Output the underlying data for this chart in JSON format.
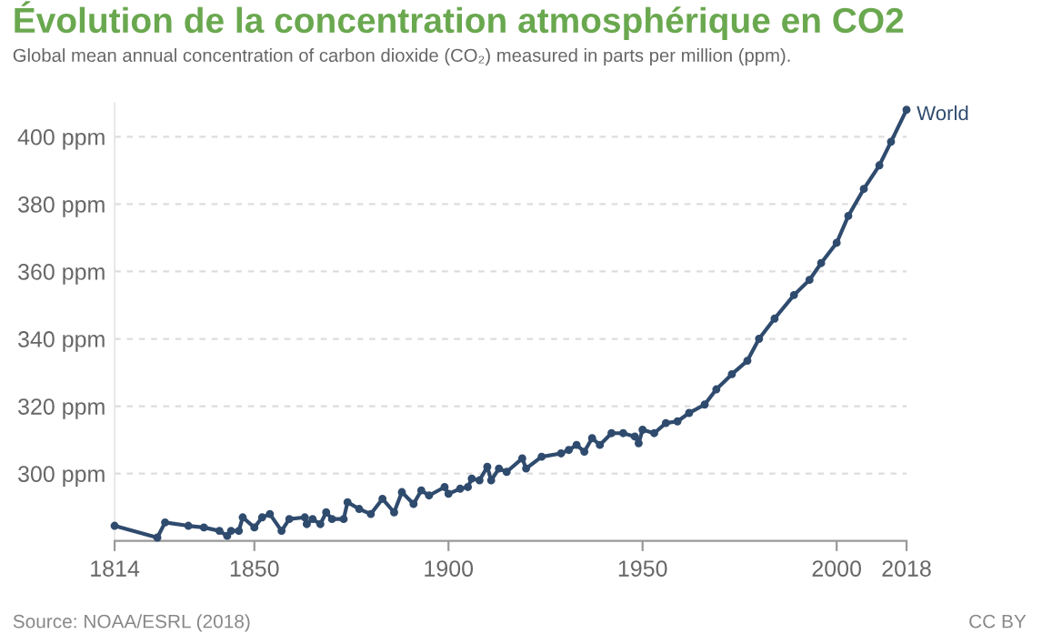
{
  "chart_data": {
    "type": "line",
    "title": "Évolution de la concentration atmosphérique en CO2",
    "subtitle": "Global mean annual concentration of carbon dioxide (CO₂) measured in parts per million (ppm).",
    "annotations": [
      "Source: NOAA/ESRL (2018)",
      "CC BY"
    ],
    "series": [
      {
        "name": "World",
        "color": "#2f4b6e",
        "x": [
          1814,
          1825,
          1827,
          1833,
          1837,
          1841,
          1843,
          1844,
          1846,
          1847,
          1850,
          1852,
          1854,
          1857,
          1859,
          1863,
          1863.5,
          1865,
          1867,
          1868.5,
          1870,
          1873,
          1874,
          1877,
          1880,
          1883,
          1886,
          1888,
          1891,
          1893,
          1895,
          1899,
          1900,
          1903,
          1905,
          1906,
          1908,
          1910,
          1911,
          1913,
          1915,
          1919,
          1920,
          1924,
          1929,
          1931,
          1933,
          1935,
          1937,
          1939,
          1942,
          1945,
          1948,
          1949,
          1950,
          1953,
          1956,
          1959,
          1962,
          1966,
          1969,
          1973,
          1977,
          1980,
          1984,
          1989,
          1993,
          1996,
          2000,
          2003,
          2007,
          2011,
          2014,
          2018
        ],
        "values": [
          284.5,
          281.0,
          285.5,
          284.5,
          284.0,
          283.0,
          281.5,
          283.0,
          283.0,
          287.0,
          284.0,
          287.0,
          288.0,
          283.0,
          286.5,
          287.0,
          285.0,
          286.5,
          285.0,
          288.5,
          286.5,
          286.5,
          291.5,
          289.5,
          288.0,
          292.5,
          288.5,
          294.5,
          291.0,
          295.0,
          293.5,
          296.0,
          294.0,
          295.5,
          296.0,
          298.5,
          298.0,
          302.0,
          298.0,
          301.5,
          300.5,
          304.5,
          301.5,
          305.0,
          306.0,
          307.0,
          308.5,
          306.5,
          310.5,
          308.5,
          312.0,
          312.0,
          311.0,
          309.0,
          313.0,
          312.0,
          315.0,
          315.5,
          318.0,
          320.5,
          325.0,
          329.5,
          333.5,
          340.0,
          346.0,
          353.0,
          357.5,
          362.5,
          368.5,
          376.5,
          384.5,
          391.5,
          398.5,
          408.0
        ]
      }
    ],
    "xlim": [
      1814,
      2018
    ],
    "xticks": [
      1814,
      1850,
      1900,
      1950,
      2000,
      2018
    ],
    "ylim": [
      280,
      410
    ],
    "yticks": [
      {
        "value": 300,
        "label": "300 ppm"
      },
      {
        "value": 320,
        "label": "320 ppm"
      },
      {
        "value": 340,
        "label": "340 ppm"
      },
      {
        "value": 360,
        "label": "360 ppm"
      },
      {
        "value": 380,
        "label": "380 ppm"
      },
      {
        "value": 400,
        "label": "400 ppm"
      }
    ],
    "grid": "y",
    "marker": "circle",
    "line_style": "solid",
    "legend": false
  }
}
